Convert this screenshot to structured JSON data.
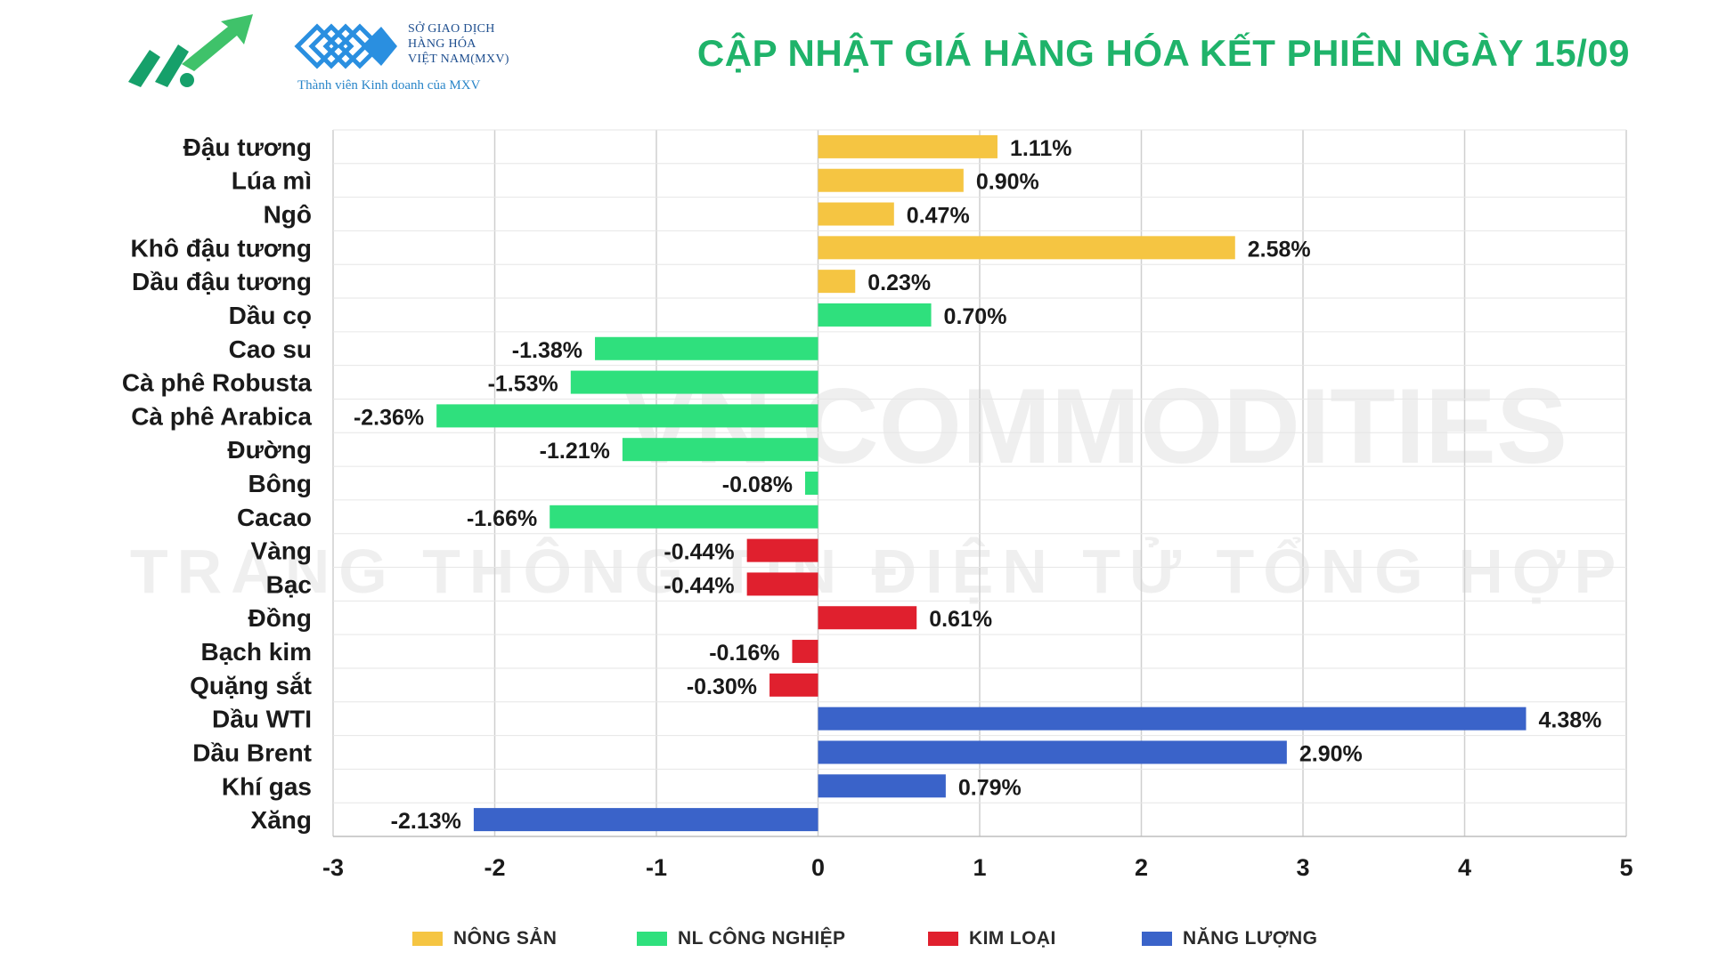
{
  "header": {
    "title": "CẬP NHẬT GIÁ HÀNG HÓA KẾT PHIÊN NGÀY 15/09",
    "mxv_name_lines": [
      "SỞ GIAO DỊCH",
      "HÀNG HÓA",
      "VIỆT NAM(MXV)"
    ],
    "mxv_tagline": "Thành viên Kinh doanh của MXV",
    "title_color": "#1fb36a"
  },
  "watermark": {
    "line1": "VN COMMODITIES",
    "line2": "TRANG THÔNG TIN ĐIỆN TỬ TỔNG HỢP"
  },
  "chart_data": {
    "type": "bar",
    "orientation": "horizontal",
    "xlim": [
      -3,
      5
    ],
    "xticks": [
      "-3",
      "-2",
      "-1",
      "0",
      "1",
      "2",
      "3",
      "4",
      "5"
    ],
    "grid": true,
    "legend_placement": "bottom",
    "value_suffix": "%",
    "categories": [
      "Đậu tương",
      "Lúa mì",
      "Ngô",
      "Khô đậu tương",
      "Dầu đậu tương",
      "Dầu cọ",
      "Cao su",
      "Cà phê Robusta",
      "Cà phê Arabica",
      "Đường",
      "Bông",
      "Cacao",
      "Vàng",
      "Bạc",
      "Đồng",
      "Bạch kim",
      "Quặng sắt",
      "Dầu WTI",
      "Dầu Brent",
      "Khí gas",
      "Xăng"
    ],
    "values": [
      1.11,
      0.9,
      0.47,
      2.58,
      0.23,
      0.7,
      -1.38,
      -1.53,
      -2.36,
      -1.21,
      -0.08,
      -1.66,
      -0.44,
      -0.44,
      0.61,
      -0.16,
      -0.3,
      4.38,
      2.9,
      0.79,
      -2.13
    ],
    "data_labels": [
      "1.11%",
      "0.90%",
      "0.47%",
      "2.58%",
      "0.23%",
      "0.70%",
      "-1.38%",
      "-1.53%",
      "-2.36%",
      "-1.21%",
      "-0.08%",
      "-1.66%",
      "-0.44%",
      "-0.44%",
      "0.61%",
      "-0.16%",
      "-0.30%",
      "4.38%",
      "2.90%",
      "0.79%",
      "-2.13%"
    ],
    "groups": [
      0,
      0,
      0,
      0,
      0,
      1,
      1,
      1,
      1,
      1,
      1,
      1,
      2,
      2,
      2,
      2,
      2,
      3,
      3,
      3,
      3
    ],
    "series": [
      {
        "name": "NÔNG SẢN",
        "color": "#f5c542"
      },
      {
        "name": "NL CÔNG NGHIỆP",
        "color": "#2fe07d"
      },
      {
        "name": "KIM LOẠI",
        "color": "#e0202e"
      },
      {
        "name": "NĂNG LƯỢNG",
        "color": "#3a63c9"
      }
    ]
  }
}
